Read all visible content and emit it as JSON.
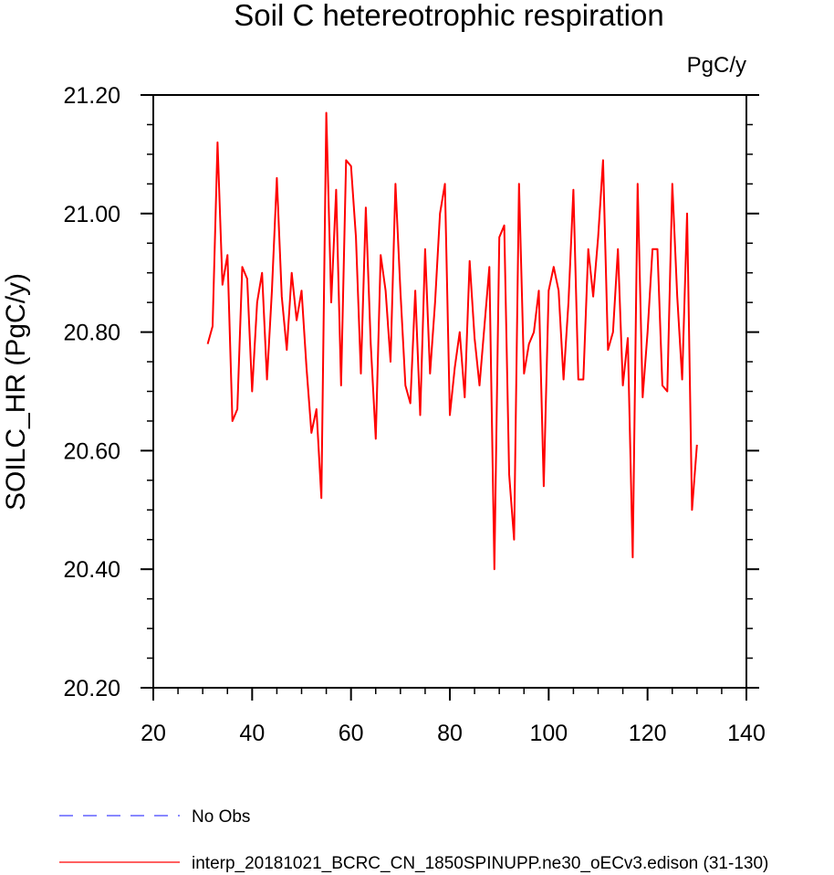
{
  "chart_data": {
    "type": "line",
    "title": "Soil C hetereotrophic respiration",
    "units": "PgC/y",
    "ylabel": "SOILC_HR  (PgC/y)",
    "xlabel": "",
    "xlim": [
      20,
      140
    ],
    "ylim": [
      20.2,
      21.2
    ],
    "x_ticks": [
      "20",
      "40",
      "60",
      "80",
      "100",
      "120",
      "140"
    ],
    "y_ticks": [
      "20.20",
      "20.40",
      "20.60",
      "20.80",
      "21.00",
      "21.20"
    ],
    "legend_position": "bottom",
    "series": [
      {
        "name": "interp_20181021_BCRC_CN_1850SPINUPP.ne30_oECv3.edison (31-130)",
        "color": "#ff0000",
        "style": "solid",
        "x_start": 31,
        "values": [
          20.78,
          20.81,
          21.12,
          20.88,
          20.93,
          20.65,
          20.67,
          20.91,
          20.89,
          20.7,
          20.85,
          20.9,
          20.72,
          20.87,
          21.06,
          20.86,
          20.77,
          20.9,
          20.82,
          20.87,
          20.74,
          20.63,
          20.67,
          20.52,
          21.17,
          20.85,
          21.04,
          20.71,
          21.09,
          21.08,
          20.96,
          20.73,
          21.01,
          20.78,
          20.62,
          20.93,
          20.87,
          20.75,
          21.05,
          20.87,
          20.71,
          20.68,
          20.87,
          20.66,
          20.94,
          20.73,
          20.85,
          21.0,
          21.05,
          20.66,
          20.74,
          20.8,
          20.69,
          20.92,
          20.79,
          20.71,
          20.81,
          20.91,
          20.4,
          20.96,
          20.98,
          20.56,
          20.45,
          21.05,
          20.73,
          20.78,
          20.8,
          20.87,
          20.54,
          20.87,
          20.91,
          20.87,
          20.72,
          20.85,
          21.04,
          20.72,
          20.72,
          20.94,
          20.86,
          20.96,
          21.09,
          20.77,
          20.8,
          20.94,
          20.71,
          20.79,
          20.42,
          21.05,
          20.69,
          20.8,
          20.94,
          20.94,
          20.71,
          20.7,
          21.05,
          20.86,
          20.72,
          21.0,
          20.5,
          20.61
        ]
      },
      {
        "name": "No Obs",
        "color": "#4040ff",
        "style": "dashed",
        "values": []
      }
    ]
  }
}
